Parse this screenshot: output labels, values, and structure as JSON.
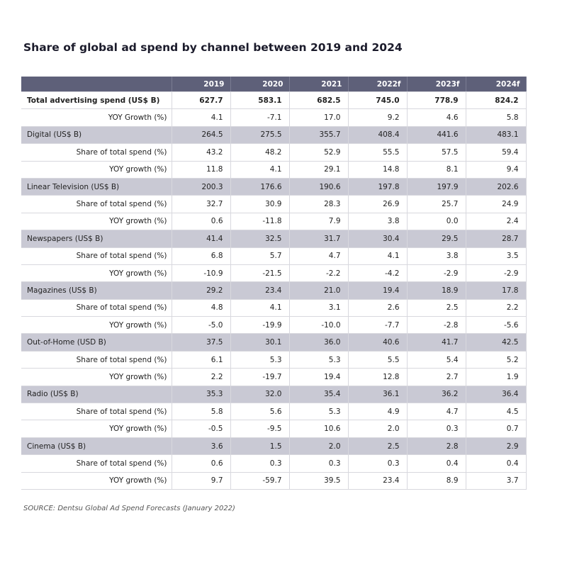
{
  "header": {
    "title": "Share of global ad spend by channel between 2019 and 2024"
  },
  "table": {
    "columns": [
      "2019",
      "2020",
      "2021",
      "2022f",
      "2023f",
      "2024f"
    ],
    "sections": [
      {
        "label": "Total advertising spend (US$ B)",
        "values": [
          "627.7",
          "583.1",
          "682.5",
          "745.0",
          "778.9",
          "824.2"
        ],
        "rows": [
          {
            "label": "YOY Growth (%)",
            "values": [
              "4.1",
              "-7.1",
              "17.0",
              "9.2",
              "4.6",
              "5.8"
            ]
          }
        ]
      },
      {
        "label": "Digital (US$ B)",
        "values": [
          "264.5",
          "275.5",
          "355.7",
          "408.4",
          "441.6",
          "483.1"
        ],
        "rows": [
          {
            "label": "Share of total spend (%)",
            "values": [
              "43.2",
              "48.2",
              "52.9",
              "55.5",
              "57.5",
              "59.4"
            ]
          },
          {
            "label": "YOY growth (%)",
            "values": [
              "11.8",
              "4.1",
              "29.1",
              "14.8",
              "8.1",
              "9.4"
            ]
          }
        ]
      },
      {
        "label": "Linear Television (US$ B)",
        "values": [
          "200.3",
          "176.6",
          "190.6",
          "197.8",
          "197.9",
          "202.6"
        ],
        "rows": [
          {
            "label": "Share of total spend (%)",
            "values": [
              "32.7",
              "30.9",
              "28.3",
              "26.9",
              "25.7",
              "24.9"
            ]
          },
          {
            "label": "YOY growth (%)",
            "values": [
              "0.6",
              "-11.8",
              "7.9",
              "3.8",
              "0.0",
              "2.4"
            ]
          }
        ]
      },
      {
        "label": "Newspapers (US$ B)",
        "values": [
          "41.4",
          "32.5",
          "31.7",
          "30.4",
          "29.5",
          "28.7"
        ],
        "rows": [
          {
            "label": "Share of total spend (%)",
            "values": [
              "6.8",
              "5.7",
              "4.7",
              "4.1",
              "3.8",
              "3.5"
            ]
          },
          {
            "label": "YOY growth (%)",
            "values": [
              "-10.9",
              "-21.5",
              "-2.2",
              "-4.2",
              "-2.9",
              "-2.9"
            ]
          }
        ]
      },
      {
        "label": "Magazines (US$ B)",
        "values": [
          "29.2",
          "23.4",
          "21.0",
          "19.4",
          "18.9",
          "17.8"
        ],
        "rows": [
          {
            "label": "Share of total spend (%)",
            "values": [
              "4.8",
              "4.1",
              "3.1",
              "2.6",
              "2.5",
              "2.2"
            ]
          },
          {
            "label": "YOY growth (%)",
            "values": [
              "-5.0",
              "-19.9",
              "-10.0",
              "-7.7",
              "-2.8",
              "-5.6"
            ]
          }
        ]
      },
      {
        "label": "Out-of-Home (USD B)",
        "values": [
          "37.5",
          "30.1",
          "36.0",
          "40.6",
          "41.7",
          "42.5"
        ],
        "rows": [
          {
            "label": "Share of total spend (%)",
            "values": [
              "6.1",
              "5.3",
              "5.3",
              "5.5",
              "5.4",
              "5.2"
            ]
          },
          {
            "label": "YOY growth (%)",
            "values": [
              "2.2",
              "-19.7",
              "19.4",
              "12.8",
              "2.7",
              "1.9"
            ]
          }
        ]
      },
      {
        "label": "Radio (US$ B)",
        "values": [
          "35.3",
          "32.0",
          "35.4",
          "36.1",
          "36.2",
          "36.4"
        ],
        "rows": [
          {
            "label": "Share of total spend (%)",
            "values": [
              "5.8",
              "5.6",
              "5.3",
              "4.9",
              "4.7",
              "4.5"
            ]
          },
          {
            "label": "YOY growth (%)",
            "values": [
              "-0.5",
              "-9.5",
              "10.6",
              "2.0",
              "0.3",
              "0.7"
            ]
          }
        ]
      },
      {
        "label": "Cinema (US$ B)",
        "values": [
          "3.6",
          "1.5",
          "2.0",
          "2.5",
          "2.8",
          "2.9"
        ],
        "rows": [
          {
            "label": "Share of total spend (%)",
            "values": [
              "0.6",
              "0.3",
              "0.3",
              "0.3",
              "0.4",
              "0.4"
            ]
          },
          {
            "label": "YOY growth (%)",
            "values": [
              "9.7",
              "-59.7",
              "39.5",
              "23.4",
              "8.9",
              "3.7"
            ]
          }
        ]
      }
    ]
  },
  "footer": {
    "source": "SOURCE: Dentsu Global Ad Spend Forecasts (January 2022)"
  }
}
